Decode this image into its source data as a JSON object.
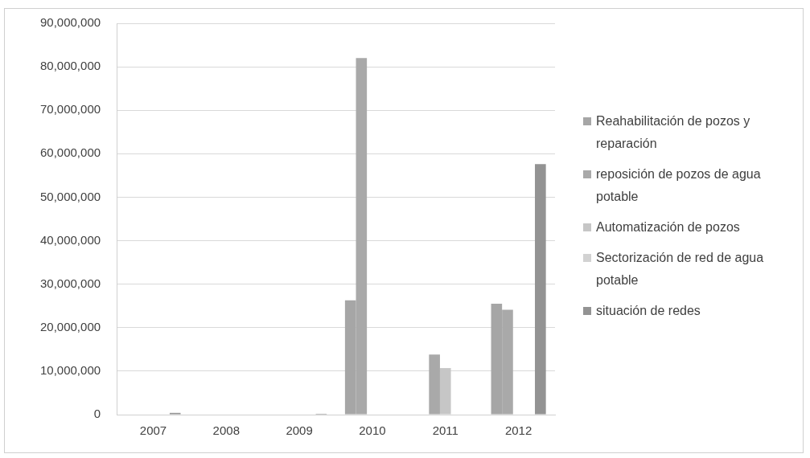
{
  "chart_data": {
    "type": "bar",
    "categories": [
      "2007",
      "2008",
      "2009",
      "2010",
      "2011",
      "2012"
    ],
    "series": [
      {
        "name": "Reahabilitación de pozos y reparación",
        "color": "#a6a6a6",
        "values": [
          null,
          null,
          null,
          26300000,
          null,
          25500000
        ]
      },
      {
        "name": "reposición de pozos de agua potable",
        "color": "#a9a9a9",
        "values": [
          null,
          null,
          null,
          82000000,
          13800000,
          24100000
        ]
      },
      {
        "name": "Automatización de pozos",
        "color": "#c6c6c6",
        "values": [
          null,
          null,
          null,
          null,
          10700000,
          null
        ]
      },
      {
        "name": "Sectorización de red de agua potable",
        "color": "#d2d2d2",
        "values": [
          null,
          null,
          null,
          null,
          null,
          null
        ]
      },
      {
        "name": "situación de redes",
        "color": "#939393",
        "values": [
          400000,
          null,
          200000,
          null,
          null,
          57600000
        ]
      }
    ],
    "ylim": [
      0,
      90000000
    ],
    "yticks": [
      0,
      {
        "value": 10000000,
        "label": "10,000,000"
      },
      {
        "value": 20000000,
        "label": "20,000,000"
      },
      {
        "value": 30000000,
        "label": "30,000,000"
      },
      {
        "value": 40000000,
        "label": "40,000,000"
      },
      {
        "value": 50000000,
        "label": "50,000,000"
      },
      {
        "value": 60000000,
        "label": "60,000,000"
      },
      {
        "value": 70000000,
        "label": "70,000,000"
      },
      {
        "value": 80000000,
        "label": "80,000,000"
      },
      {
        "value": 90000000,
        "label": "90,000,000"
      }
    ],
    "grid": "y",
    "legend": "right"
  }
}
